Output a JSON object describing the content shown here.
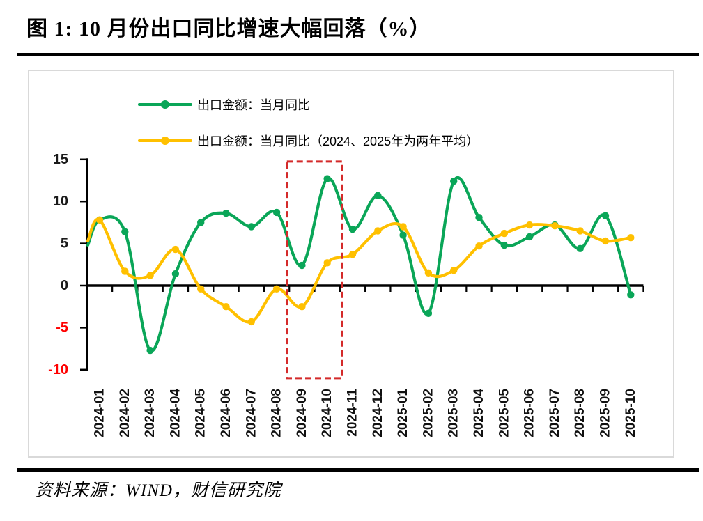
{
  "page": {
    "title": "图 1: 10 月份出口同比增速大幅回落（%）",
    "source": "资料来源：WIND，财信研究院"
  },
  "chart_data": {
    "type": "line",
    "title": "10 月份出口同比增速大幅回落（%）",
    "smoothed": true,
    "legend_position": "top-center",
    "categories": [
      "2024-01",
      "2024-02",
      "2024-03",
      "2024-04",
      "2024-05",
      "2024-06",
      "2024-07",
      "2024-08",
      "2024-09",
      "2024-10",
      "2024-11",
      "2024-12",
      "2025-01",
      "2025-02",
      "2025-03",
      "2025-04",
      "2025-05",
      "2025-06",
      "2025-07",
      "2025-08",
      "2025-09",
      "2025-10"
    ],
    "series": [
      {
        "name": "出口金额：当月同比",
        "color": "#0aa658",
        "edge_start": 4.8,
        "values": [
          7.8,
          6.4,
          -7.7,
          1.4,
          7.5,
          8.6,
          7.0,
          8.7,
          2.4,
          12.7,
          6.7,
          10.7,
          6.0,
          -3.3,
          12.4,
          8.1,
          4.8,
          5.8,
          7.2,
          4.4,
          8.3,
          -1.1
        ]
      },
      {
        "name": "出口金额：当月同比（2024、2025年为两年平均）",
        "color": "#ffc000",
        "edge_start": 5.3,
        "values": [
          7.8,
          1.7,
          1.2,
          4.3,
          -0.4,
          -2.5,
          -4.3,
          -0.4,
          -2.5,
          2.7,
          3.7,
          6.5,
          7.0,
          1.5,
          1.8,
          4.7,
          6.2,
          7.2,
          7.1,
          6.5,
          5.3,
          5.7
        ]
      }
    ],
    "ylim": [
      -10,
      15
    ],
    "yticks": [
      15,
      10,
      5,
      0,
      -5,
      -10
    ],
    "axis_color": "#000000",
    "tick_label_color": "#1a1a1a",
    "negative_tick_color": "#ff0000",
    "highlight_box": {
      "months": [
        "2024-09",
        "2024-10"
      ],
      "color": "#d42a2a",
      "style": "dashed"
    }
  }
}
